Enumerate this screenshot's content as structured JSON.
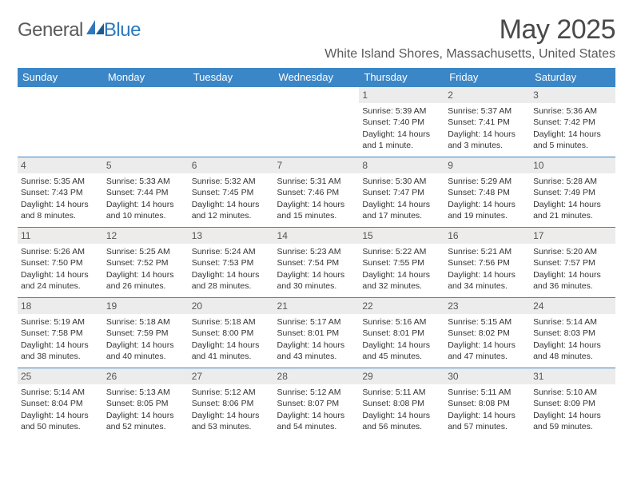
{
  "brand": {
    "text_a": "General",
    "text_b": "Blue"
  },
  "title": "May 2025",
  "location": "White Island Shores, Massachusetts, United States",
  "colors": {
    "header_blue": "#3b86c6",
    "day_strip": "#ececec",
    "text_gray": "#5a5a5a",
    "brand_blue": "#2f78bd"
  },
  "weekdays": [
    "Sunday",
    "Monday",
    "Tuesday",
    "Wednesday",
    "Thursday",
    "Friday",
    "Saturday"
  ],
  "weeks": [
    [
      {
        "empty": true
      },
      {
        "empty": true
      },
      {
        "empty": true
      },
      {
        "empty": true
      },
      {
        "n": "1",
        "sunrise": "Sunrise: 5:39 AM",
        "sunset": "Sunset: 7:40 PM",
        "daylight": "Daylight: 14 hours and 1 minute."
      },
      {
        "n": "2",
        "sunrise": "Sunrise: 5:37 AM",
        "sunset": "Sunset: 7:41 PM",
        "daylight": "Daylight: 14 hours and 3 minutes."
      },
      {
        "n": "3",
        "sunrise": "Sunrise: 5:36 AM",
        "sunset": "Sunset: 7:42 PM",
        "daylight": "Daylight: 14 hours and 5 minutes."
      }
    ],
    [
      {
        "n": "4",
        "sunrise": "Sunrise: 5:35 AM",
        "sunset": "Sunset: 7:43 PM",
        "daylight": "Daylight: 14 hours and 8 minutes."
      },
      {
        "n": "5",
        "sunrise": "Sunrise: 5:33 AM",
        "sunset": "Sunset: 7:44 PM",
        "daylight": "Daylight: 14 hours and 10 minutes."
      },
      {
        "n": "6",
        "sunrise": "Sunrise: 5:32 AM",
        "sunset": "Sunset: 7:45 PM",
        "daylight": "Daylight: 14 hours and 12 minutes."
      },
      {
        "n": "7",
        "sunrise": "Sunrise: 5:31 AM",
        "sunset": "Sunset: 7:46 PM",
        "daylight": "Daylight: 14 hours and 15 minutes."
      },
      {
        "n": "8",
        "sunrise": "Sunrise: 5:30 AM",
        "sunset": "Sunset: 7:47 PM",
        "daylight": "Daylight: 14 hours and 17 minutes."
      },
      {
        "n": "9",
        "sunrise": "Sunrise: 5:29 AM",
        "sunset": "Sunset: 7:48 PM",
        "daylight": "Daylight: 14 hours and 19 minutes."
      },
      {
        "n": "10",
        "sunrise": "Sunrise: 5:28 AM",
        "sunset": "Sunset: 7:49 PM",
        "daylight": "Daylight: 14 hours and 21 minutes."
      }
    ],
    [
      {
        "n": "11",
        "sunrise": "Sunrise: 5:26 AM",
        "sunset": "Sunset: 7:50 PM",
        "daylight": "Daylight: 14 hours and 24 minutes."
      },
      {
        "n": "12",
        "sunrise": "Sunrise: 5:25 AM",
        "sunset": "Sunset: 7:52 PM",
        "daylight": "Daylight: 14 hours and 26 minutes."
      },
      {
        "n": "13",
        "sunrise": "Sunrise: 5:24 AM",
        "sunset": "Sunset: 7:53 PM",
        "daylight": "Daylight: 14 hours and 28 minutes."
      },
      {
        "n": "14",
        "sunrise": "Sunrise: 5:23 AM",
        "sunset": "Sunset: 7:54 PM",
        "daylight": "Daylight: 14 hours and 30 minutes."
      },
      {
        "n": "15",
        "sunrise": "Sunrise: 5:22 AM",
        "sunset": "Sunset: 7:55 PM",
        "daylight": "Daylight: 14 hours and 32 minutes."
      },
      {
        "n": "16",
        "sunrise": "Sunrise: 5:21 AM",
        "sunset": "Sunset: 7:56 PM",
        "daylight": "Daylight: 14 hours and 34 minutes."
      },
      {
        "n": "17",
        "sunrise": "Sunrise: 5:20 AM",
        "sunset": "Sunset: 7:57 PM",
        "daylight": "Daylight: 14 hours and 36 minutes."
      }
    ],
    [
      {
        "n": "18",
        "sunrise": "Sunrise: 5:19 AM",
        "sunset": "Sunset: 7:58 PM",
        "daylight": "Daylight: 14 hours and 38 minutes."
      },
      {
        "n": "19",
        "sunrise": "Sunrise: 5:18 AM",
        "sunset": "Sunset: 7:59 PM",
        "daylight": "Daylight: 14 hours and 40 minutes."
      },
      {
        "n": "20",
        "sunrise": "Sunrise: 5:18 AM",
        "sunset": "Sunset: 8:00 PM",
        "daylight": "Daylight: 14 hours and 41 minutes."
      },
      {
        "n": "21",
        "sunrise": "Sunrise: 5:17 AM",
        "sunset": "Sunset: 8:01 PM",
        "daylight": "Daylight: 14 hours and 43 minutes."
      },
      {
        "n": "22",
        "sunrise": "Sunrise: 5:16 AM",
        "sunset": "Sunset: 8:01 PM",
        "daylight": "Daylight: 14 hours and 45 minutes."
      },
      {
        "n": "23",
        "sunrise": "Sunrise: 5:15 AM",
        "sunset": "Sunset: 8:02 PM",
        "daylight": "Daylight: 14 hours and 47 minutes."
      },
      {
        "n": "24",
        "sunrise": "Sunrise: 5:14 AM",
        "sunset": "Sunset: 8:03 PM",
        "daylight": "Daylight: 14 hours and 48 minutes."
      }
    ],
    [
      {
        "n": "25",
        "sunrise": "Sunrise: 5:14 AM",
        "sunset": "Sunset: 8:04 PM",
        "daylight": "Daylight: 14 hours and 50 minutes."
      },
      {
        "n": "26",
        "sunrise": "Sunrise: 5:13 AM",
        "sunset": "Sunset: 8:05 PM",
        "daylight": "Daylight: 14 hours and 52 minutes."
      },
      {
        "n": "27",
        "sunrise": "Sunrise: 5:12 AM",
        "sunset": "Sunset: 8:06 PM",
        "daylight": "Daylight: 14 hours and 53 minutes."
      },
      {
        "n": "28",
        "sunrise": "Sunrise: 5:12 AM",
        "sunset": "Sunset: 8:07 PM",
        "daylight": "Daylight: 14 hours and 54 minutes."
      },
      {
        "n": "29",
        "sunrise": "Sunrise: 5:11 AM",
        "sunset": "Sunset: 8:08 PM",
        "daylight": "Daylight: 14 hours and 56 minutes."
      },
      {
        "n": "30",
        "sunrise": "Sunrise: 5:11 AM",
        "sunset": "Sunset: 8:08 PM",
        "daylight": "Daylight: 14 hours and 57 minutes."
      },
      {
        "n": "31",
        "sunrise": "Sunrise: 5:10 AM",
        "sunset": "Sunset: 8:09 PM",
        "daylight": "Daylight: 14 hours and 59 minutes."
      }
    ]
  ]
}
